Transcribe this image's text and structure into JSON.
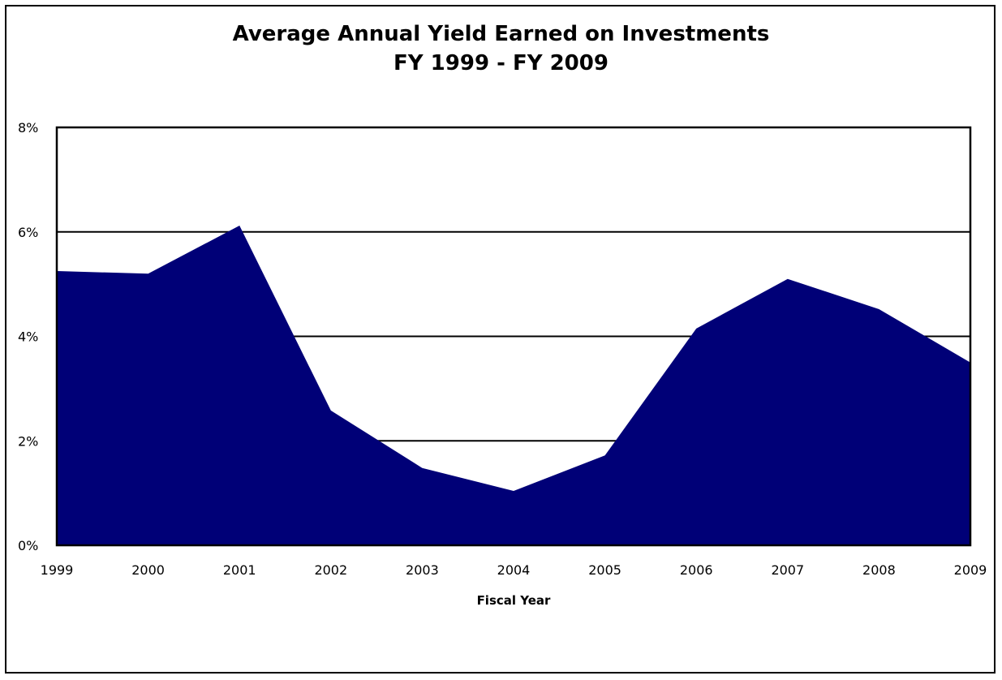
{
  "chart_data": {
    "type": "area",
    "title": "Average Annual Yield Earned on Investments",
    "subtitle": "FY 1999 - FY 2009",
    "xlabel": "Fiscal Year",
    "ylabel": "",
    "x": [
      "1999",
      "2000",
      "2001",
      "2002",
      "2003",
      "2004",
      "2005",
      "2006",
      "2007",
      "2008",
      "2009"
    ],
    "series": [
      {
        "values": [
          5.25,
          5.2,
          6.12,
          2.58,
          1.48,
          1.04,
          1.72,
          4.15,
          5.1,
          4.52,
          3.5
        ],
        "color": "#000077"
      }
    ],
    "ylim": [
      0,
      8
    ],
    "yticks": [
      0,
      2,
      4,
      6,
      8
    ],
    "ytick_labels": [
      "0%",
      "2%",
      "4%",
      "6%",
      "8%"
    ],
    "grid": true,
    "legend": "none"
  }
}
